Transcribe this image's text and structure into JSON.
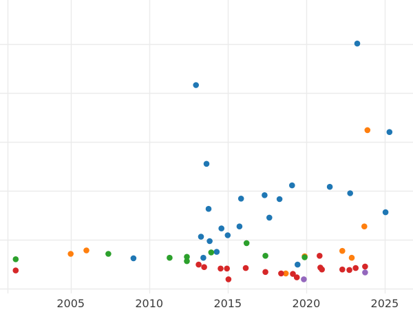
{
  "chart_data": {
    "type": "scatter",
    "title": "",
    "xlabel": "",
    "ylabel": "",
    "xlim": [
      2000.5,
      2026.8
    ],
    "ylim": [
      -0.1,
      5.9
    ],
    "x_ticks": [
      2005,
      2010,
      2015,
      2020,
      2025
    ],
    "x_tick_labels": [
      "2005",
      "2010",
      "2015",
      "2020",
      "2025"
    ],
    "y_grid": [
      0,
      1,
      2,
      3,
      4,
      5
    ],
    "grid": true,
    "legend": "none",
    "series": [
      {
        "color": "#1f77b4",
        "points": [
          [
            2009.0,
            0.62
          ],
          [
            2012.98,
            4.16
          ],
          [
            2013.3,
            1.06
          ],
          [
            2013.45,
            0.63
          ],
          [
            2013.65,
            2.55
          ],
          [
            2013.78,
            1.63
          ],
          [
            2013.85,
            0.97
          ],
          [
            2014.3,
            0.75
          ],
          [
            2014.6,
            1.23
          ],
          [
            2015.0,
            1.09
          ],
          [
            2015.75,
            1.27
          ],
          [
            2015.85,
            1.84
          ],
          [
            2017.35,
            1.91
          ],
          [
            2017.65,
            1.45
          ],
          [
            2018.3,
            1.83
          ],
          [
            2019.1,
            2.11
          ],
          [
            2019.45,
            0.49
          ],
          [
            2021.5,
            2.08
          ],
          [
            2022.8,
            1.95
          ],
          [
            2023.25,
            5.01
          ],
          [
            2025.05,
            1.56
          ],
          [
            2025.3,
            3.2
          ]
        ]
      },
      {
        "color": "#ff7f0e",
        "points": [
          [
            2005.0,
            0.71
          ],
          [
            2006.0,
            0.78
          ],
          [
            2018.7,
            0.31
          ],
          [
            2019.9,
            0.66
          ],
          [
            2022.3,
            0.77
          ],
          [
            2022.9,
            0.63
          ],
          [
            2023.7,
            1.27
          ],
          [
            2023.9,
            3.24
          ]
        ]
      },
      {
        "color": "#2ca02c",
        "points": [
          [
            2001.5,
            0.6
          ],
          [
            2007.4,
            0.71
          ],
          [
            2011.3,
            0.63
          ],
          [
            2012.4,
            0.56
          ],
          [
            2012.4,
            0.65
          ],
          [
            2013.95,
            0.74
          ],
          [
            2016.2,
            0.93
          ],
          [
            2017.4,
            0.67
          ],
          [
            2019.9,
            0.64
          ]
        ]
      },
      {
        "color": "#d62728",
        "points": [
          [
            2001.5,
            0.37
          ],
          [
            2013.15,
            0.49
          ],
          [
            2013.5,
            0.44
          ],
          [
            2014.55,
            0.41
          ],
          [
            2014.95,
            0.41
          ],
          [
            2015.05,
            0.19
          ],
          [
            2016.15,
            0.42
          ],
          [
            2017.4,
            0.34
          ],
          [
            2018.4,
            0.31
          ],
          [
            2019.15,
            0.3
          ],
          [
            2019.4,
            0.23
          ],
          [
            2020.85,
            0.67
          ],
          [
            2020.9,
            0.43
          ],
          [
            2021.0,
            0.39
          ],
          [
            2022.3,
            0.39
          ],
          [
            2022.75,
            0.38
          ],
          [
            2023.15,
            0.42
          ],
          [
            2023.75,
            0.45
          ]
        ]
      },
      {
        "color": "#9467bd",
        "points": [
          [
            2019.85,
            0.19
          ],
          [
            2023.75,
            0.33
          ]
        ]
      }
    ]
  }
}
